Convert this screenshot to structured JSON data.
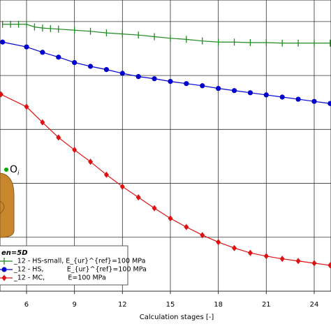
{
  "chart_data": {
    "type": "line",
    "x_label": "Calculation stages [-]",
    "xlim": [
      4.34,
      25.05
    ],
    "xticks": [
      6,
      9,
      12,
      15,
      18,
      21,
      24
    ],
    "ylim": [
      0,
      5.4
    ],
    "ygrid": [
      0,
      1,
      2,
      3,
      4,
      5
    ],
    "grid": true,
    "legend_title": "en=5D",
    "annotation": {
      "text": "O",
      "subscript": "i"
    },
    "series": [
      {
        "name": "_12 - HS-small, E_{ur}^{ref}=100 MPa",
        "color": "#1f8a1f",
        "marker": "tick",
        "x": [
          4.5,
          5,
          5.5,
          6,
          6.5,
          7,
          7.5,
          8,
          9,
          10,
          11,
          12,
          13,
          14,
          15,
          16,
          17,
          18,
          19,
          20,
          21,
          22,
          23,
          24,
          25
        ],
        "values": [
          4.95,
          4.95,
          4.95,
          4.95,
          4.9,
          4.88,
          4.87,
          4.86,
          4.84,
          4.82,
          4.79,
          4.77,
          4.75,
          4.72,
          4.69,
          4.67,
          4.64,
          4.62,
          4.62,
          4.61,
          4.61,
          4.6,
          4.6,
          4.6,
          4.6
        ]
      },
      {
        "name": "_12 - HS,           E_{ur}^{ref}=100 MPa",
        "color": "#0000cc",
        "marker": "circle",
        "x": [
          4.5,
          6,
          7,
          8,
          9,
          10,
          11,
          12,
          13,
          14,
          15,
          16,
          17,
          18,
          19,
          20,
          21,
          22,
          23,
          24,
          25
        ],
        "values": [
          4.62,
          4.53,
          4.43,
          4.34,
          4.24,
          4.17,
          4.11,
          4.04,
          3.98,
          3.94,
          3.89,
          3.85,
          3.81,
          3.76,
          3.72,
          3.68,
          3.64,
          3.6,
          3.56,
          3.52,
          3.48
        ]
      },
      {
        "name": "_12 - MC,           E=100 MPa",
        "color": "#dd1111",
        "marker": "diamond",
        "x": [
          4.4,
          6,
          7,
          8,
          9,
          10,
          11,
          12,
          13,
          14,
          15,
          16,
          17,
          18,
          19,
          20,
          21,
          22,
          23,
          24,
          25
        ],
        "values": [
          3.65,
          3.42,
          3.13,
          2.85,
          2.62,
          2.4,
          2.16,
          1.94,
          1.74,
          1.54,
          1.35,
          1.19,
          1.04,
          0.91,
          0.8,
          0.71,
          0.65,
          0.6,
          0.56,
          0.52,
          0.48
        ]
      }
    ]
  }
}
